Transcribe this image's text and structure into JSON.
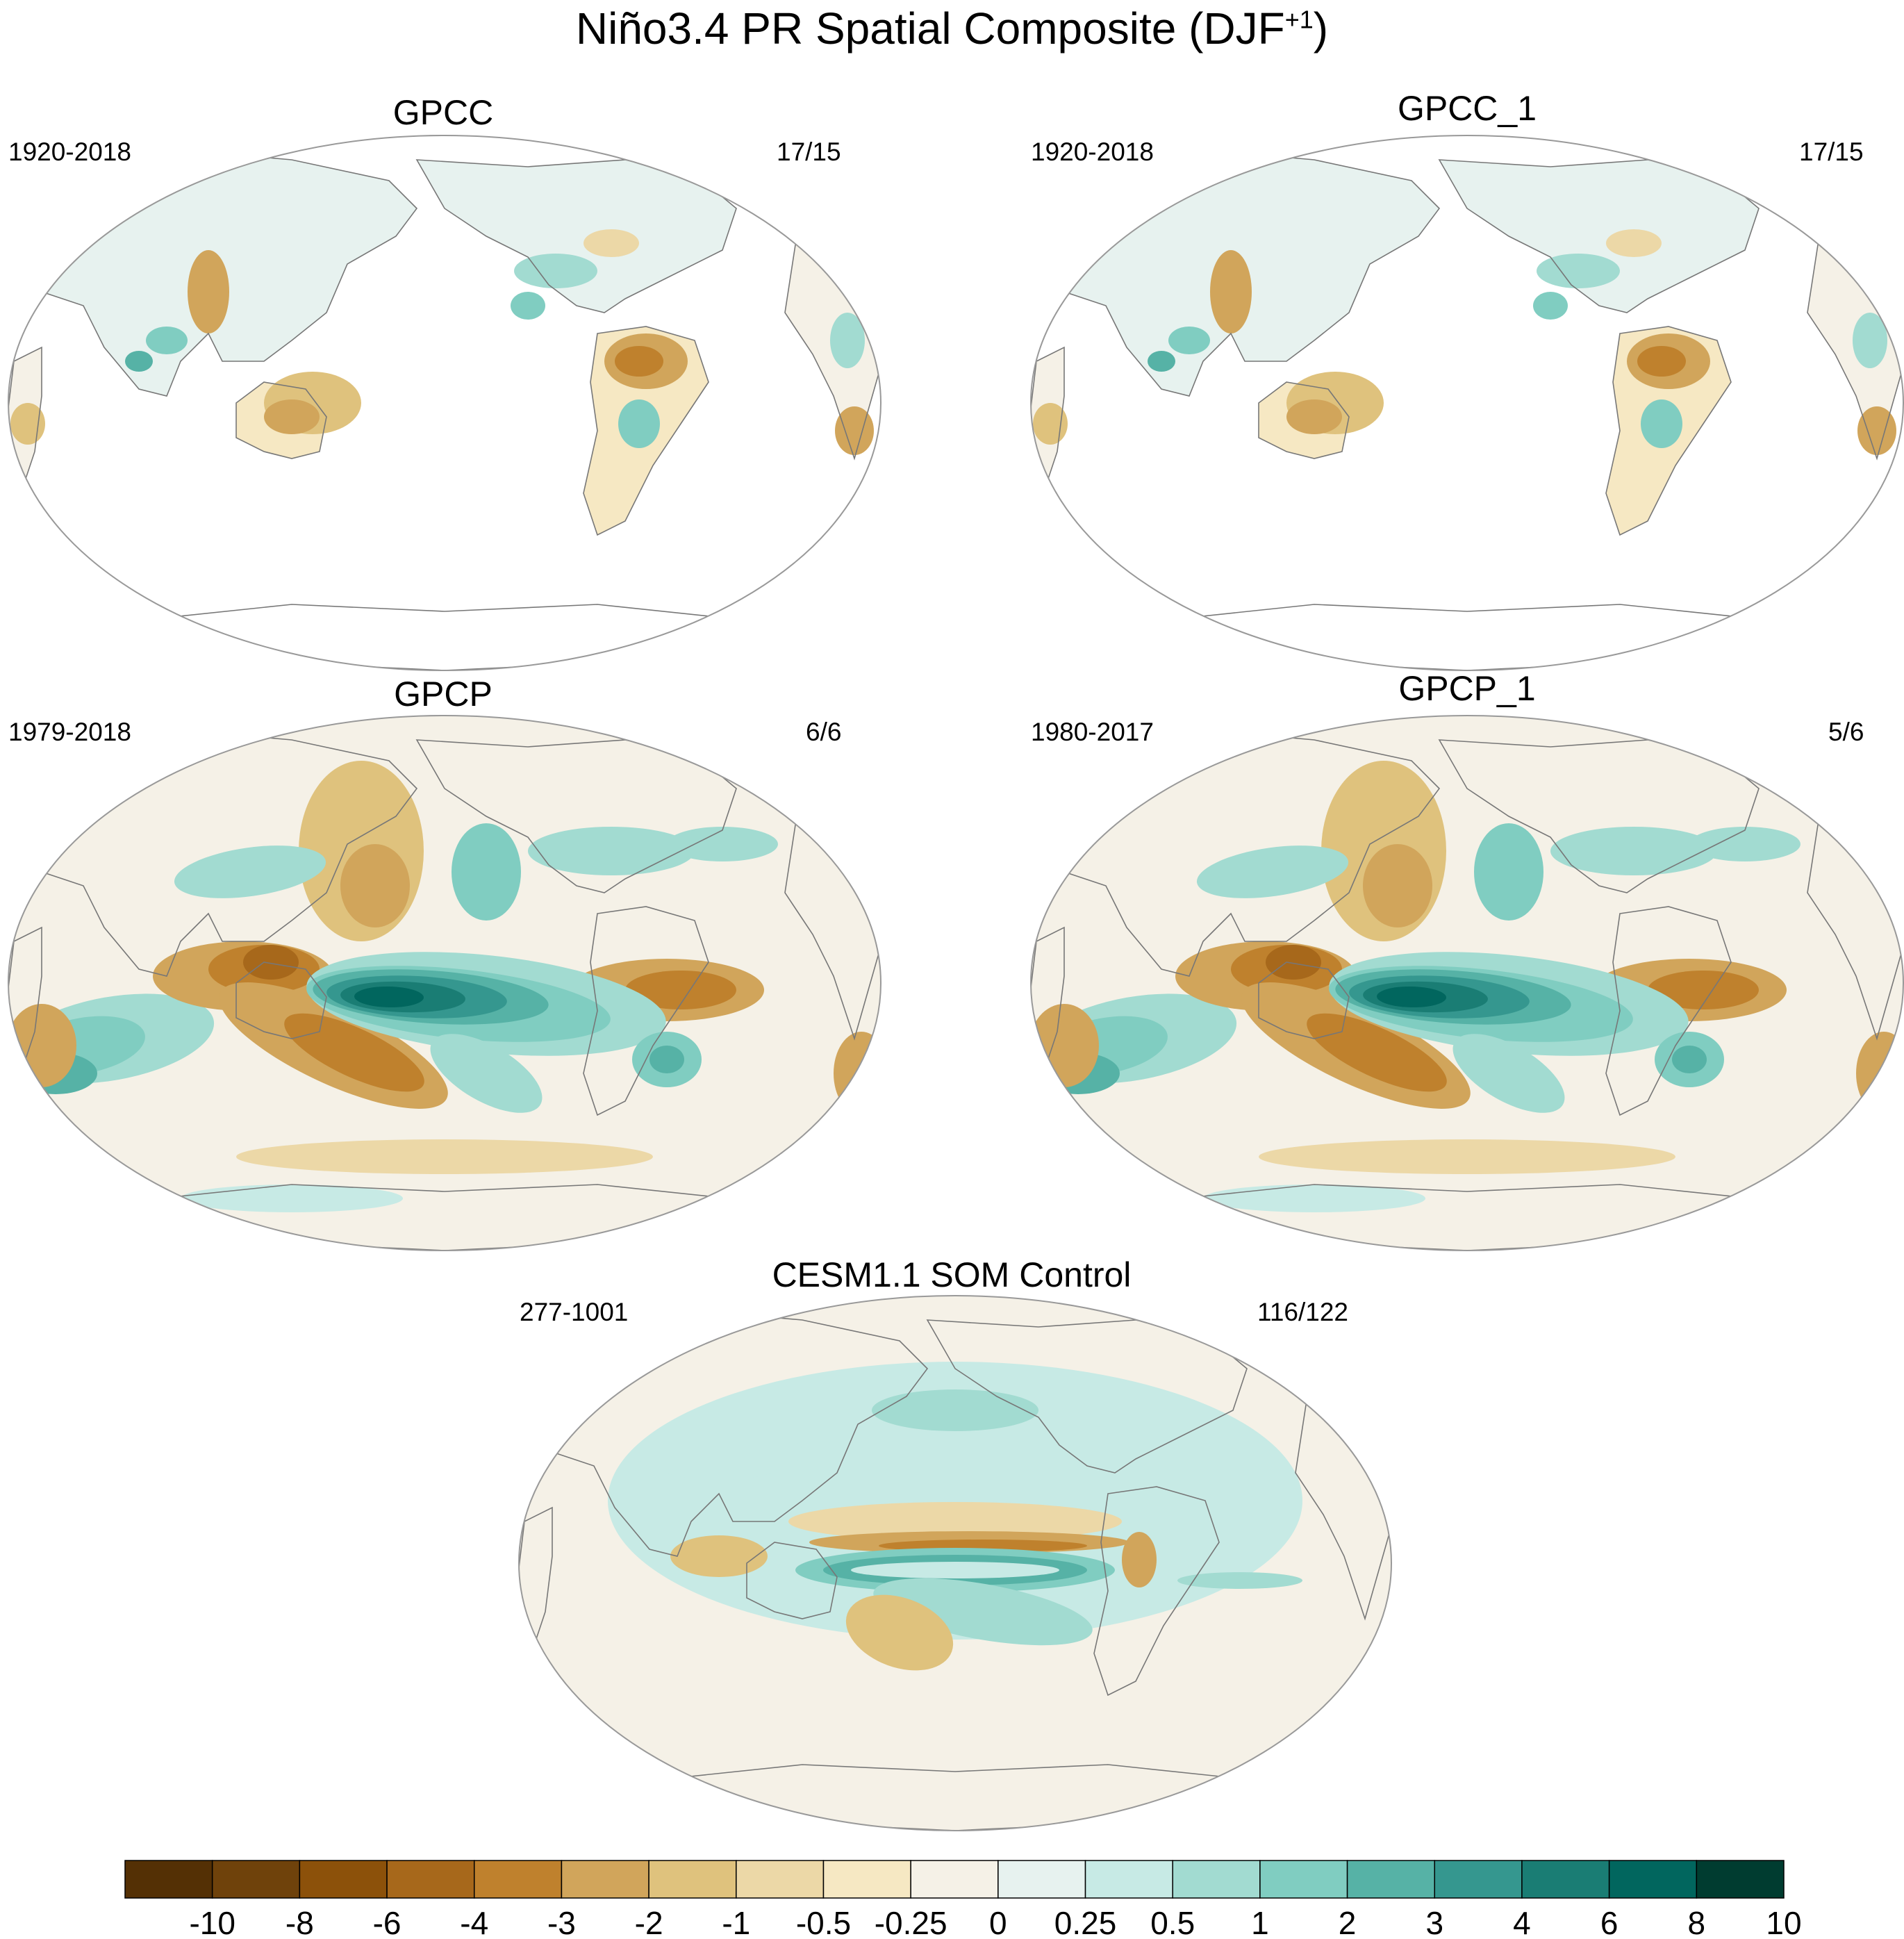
{
  "title": {
    "main": "Niño3.4 PR Spatial Composite (DJF",
    "sup": "+1",
    "close": ")"
  },
  "panels": [
    {
      "name": "GPCC",
      "years": "1920-2018",
      "count": "17/15",
      "type": "gpcc"
    },
    {
      "name": "GPCC_1",
      "years": "1920-2018",
      "count": "17/15",
      "type": "gpcc"
    },
    {
      "name": "GPCP",
      "years": "1979-2018",
      "count": "6/6",
      "type": "gpcp"
    },
    {
      "name": "GPCP_1",
      "years": "1980-2017",
      "count": "5/6",
      "type": "gpcp"
    },
    {
      "name": "CESM1.1 SOM Control",
      "years": "277-1001",
      "count": "116/122",
      "type": "cesm"
    }
  ],
  "chart_data": {
    "type": "heatmap",
    "projection": "Robinson",
    "colorbar": {
      "labels": [
        "-10",
        "-8",
        "-6",
        "-4",
        "-3",
        "-2",
        "-1",
        "-0.5",
        "-0.25",
        "0",
        "0.25",
        "0.5",
        "1",
        "2",
        "3",
        "4",
        "6",
        "8",
        "10"
      ],
      "colors": [
        "#543005",
        "#6f420b",
        "#8c510a",
        "#a7681b",
        "#bf812d",
        "#d1a55b",
        "#dfc27d",
        "#ecd8a7",
        "#f6e8c3",
        "#f5f1e7",
        "#e7f2ef",
        "#c7eae5",
        "#a2dbd1",
        "#80cdc1",
        "#56b2a6",
        "#35978f",
        "#1a7d74",
        "#01665e",
        "#003c30"
      ]
    }
  }
}
